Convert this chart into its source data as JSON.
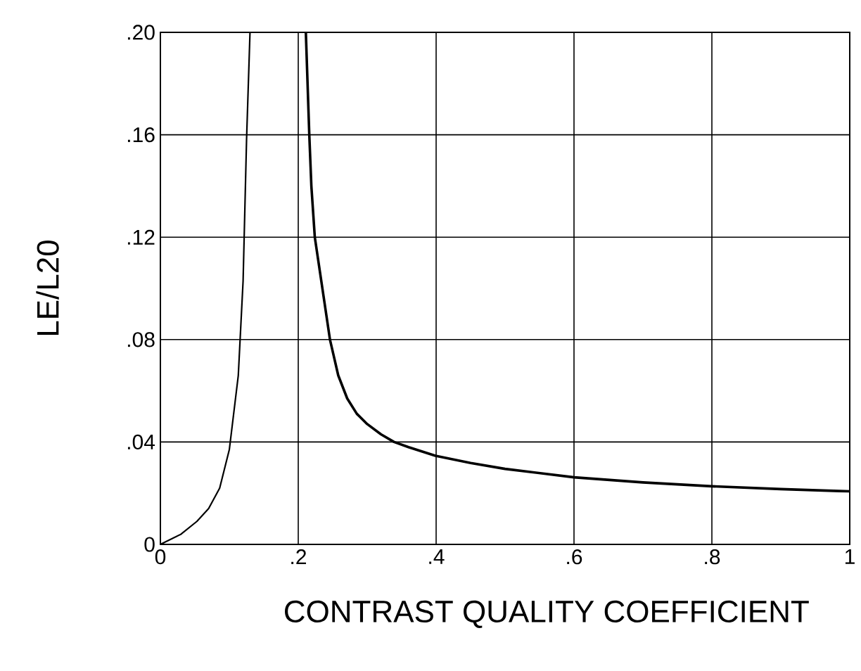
{
  "chart_data": {
    "type": "line",
    "xlabel": "CONTRAST QUALITY COEFFICIENT",
    "ylabel": "LE/L20",
    "xlim": [
      0,
      1
    ],
    "ylim": [
      0,
      0.2
    ],
    "xticks": [
      0,
      {
        "value": 0.2,
        "label": ".2"
      },
      {
        "value": 0.4,
        "label": ".4"
      },
      {
        "value": 0.6,
        "label": ".6"
      },
      {
        "value": 0.8,
        "label": ".8"
      },
      1
    ],
    "yticks": [
      0,
      {
        "value": 0.04,
        "label": ".04"
      },
      {
        "value": 0.08,
        "label": ".08"
      },
      {
        "value": 0.12,
        "label": ".12"
      },
      {
        "value": 0.16,
        "label": ".16"
      },
      {
        "value": 0.2,
        "label": ".20"
      }
    ],
    "grid": true,
    "marker": "none",
    "line_style": "solid",
    "series": [
      {
        "color": "#000000",
        "x": [
          0,
          0.03,
          0.053,
          0.07,
          0.086,
          0.1,
          0.113,
          0.12,
          0.125,
          0.13
        ],
        "values": [
          0,
          0.004,
          0.009,
          0.014,
          0.022,
          0.037,
          0.066,
          0.103,
          0.158,
          0.2
        ]
      },
      {
        "color": "#000000",
        "x": [
          0.211,
          0.216,
          0.219,
          0.224,
          0.246,
          0.258,
          0.271,
          0.285,
          0.3,
          0.32,
          0.339,
          0.36,
          0.399,
          0.45,
          0.5,
          0.6,
          0.7,
          0.8,
          0.9,
          1
        ],
        "values": [
          0.2,
          0.16,
          0.14,
          0.12,
          0.08,
          0.066,
          0.057,
          0.051,
          0.047,
          0.043,
          0.04,
          0.038,
          0.0346,
          0.0318,
          0.0295,
          0.0262,
          0.0242,
          0.0227,
          0.0216,
          0.0207
        ]
      }
    ]
  }
}
